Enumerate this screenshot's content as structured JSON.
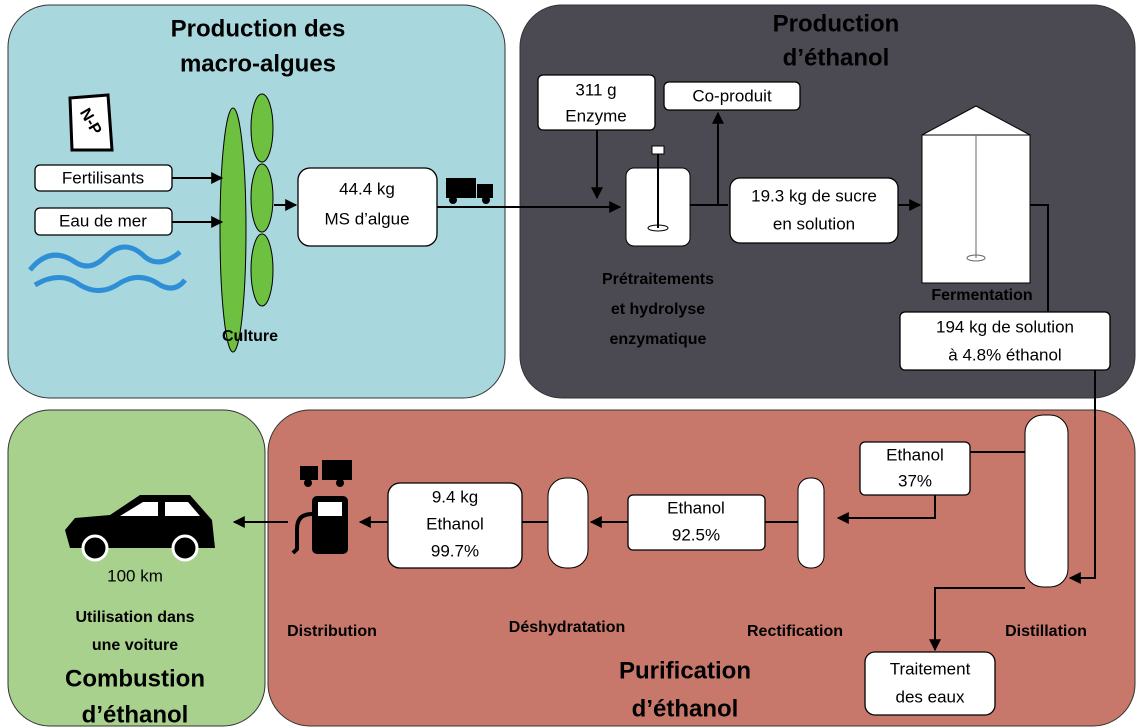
{
  "panels": {
    "algae": {
      "title": [
        "Production des",
        "macro-algues"
      ],
      "bag_label": "N-P",
      "inputs": [
        "Fertilisants",
        "Eau de mer"
      ],
      "output": [
        "44.4 kg",
        "MS d’algue"
      ],
      "step": "Culture"
    },
    "ethanol": {
      "title": [
        "Production",
        "d’éthanol"
      ],
      "enzyme": [
        "311 g",
        "Enzyme"
      ],
      "coproduct": "Co-produit",
      "sugar": [
        "19.3 kg de sucre",
        "en solution"
      ],
      "hydrolysis": [
        "Prétraitements",
        "et hydrolyse",
        "enzymatique"
      ],
      "fermentation": "Fermentation",
      "solution": [
        "194 kg de solution",
        "à 4.8% éthanol"
      ]
    },
    "purification": {
      "title": [
        "Purification",
        "d’éthanol"
      ],
      "distillation": "Distillation",
      "distillate": [
        "Ethanol",
        "37%"
      ],
      "rectification": "Rectification",
      "rectified": [
        "Ethanol",
        "92.5%"
      ],
      "dehydration": "Déshydratation",
      "product": [
        "9.4 kg",
        "Ethanol",
        "99.7%"
      ],
      "distribution": "Distribution",
      "water": [
        "Traitement",
        "des eaux"
      ]
    },
    "combustion": {
      "title": [
        "Combustion",
        "d’éthanol"
      ],
      "use": [
        "Utilisation dans",
        "une voiture"
      ],
      "distance": "100 km"
    }
  }
}
